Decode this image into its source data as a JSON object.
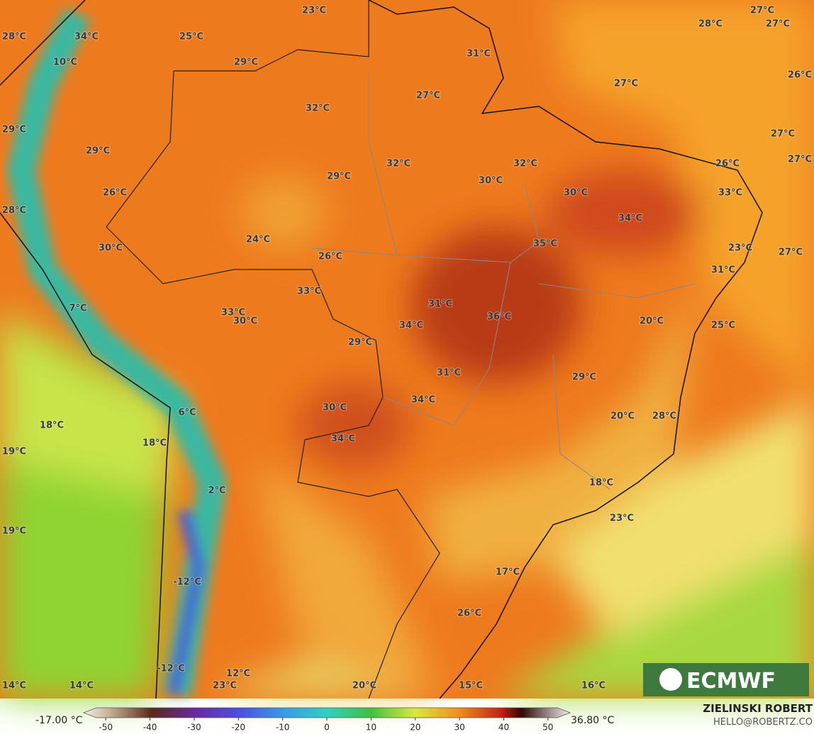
{
  "map": {
    "temperature_labels": [
      "23°C",
      "27°C",
      "28°C",
      "34°C",
      "25°C",
      "28°C",
      "27°C",
      "31°C",
      "10°C",
      "29°C",
      "26°C",
      "27°C",
      "27°C",
      "32°C",
      "29°C",
      "27°C",
      "29°C",
      "32°C",
      "32°C",
      "26°C",
      "27°C",
      "29°C",
      "30°C",
      "26°C",
      "30°C",
      "33°C",
      "28°C",
      "34°C",
      "24°C",
      "35°C",
      "30°C",
      "23°C",
      "27°C",
      "26°C",
      "31°C",
      "33°C",
      "31°C",
      "7°C",
      "33°C",
      "36°C",
      "30°C",
      "20°C",
      "25°C",
      "34°C",
      "29°C",
      "31°C",
      "29°C",
      "34°C",
      "6°C",
      "30°C",
      "20°C",
      "28°C",
      "18°C",
      "34°C",
      "18°C",
      "19°C",
      "18°C",
      "2°C",
      "23°C",
      "19°C",
      "17°C",
      "-12°C",
      "26°C",
      "-12°C",
      "12°C",
      "14°C",
      "14°C",
      "23°C",
      "20°C",
      "15°C",
      "16°C"
    ],
    "logo": "ECMWF",
    "author": "ZIELINSKI ROBERT",
    "contact": "HELLO@ROBERTZ.CO",
    "colorbar": {
      "min_label": "-17.00 °C",
      "max_label": "36.80 °C",
      "lim": [
        -55,
        55
      ],
      "ticks": [
        -50,
        -40,
        -30,
        -20,
        -10,
        0,
        10,
        20,
        30,
        40,
        50
      ]
    }
  }
}
